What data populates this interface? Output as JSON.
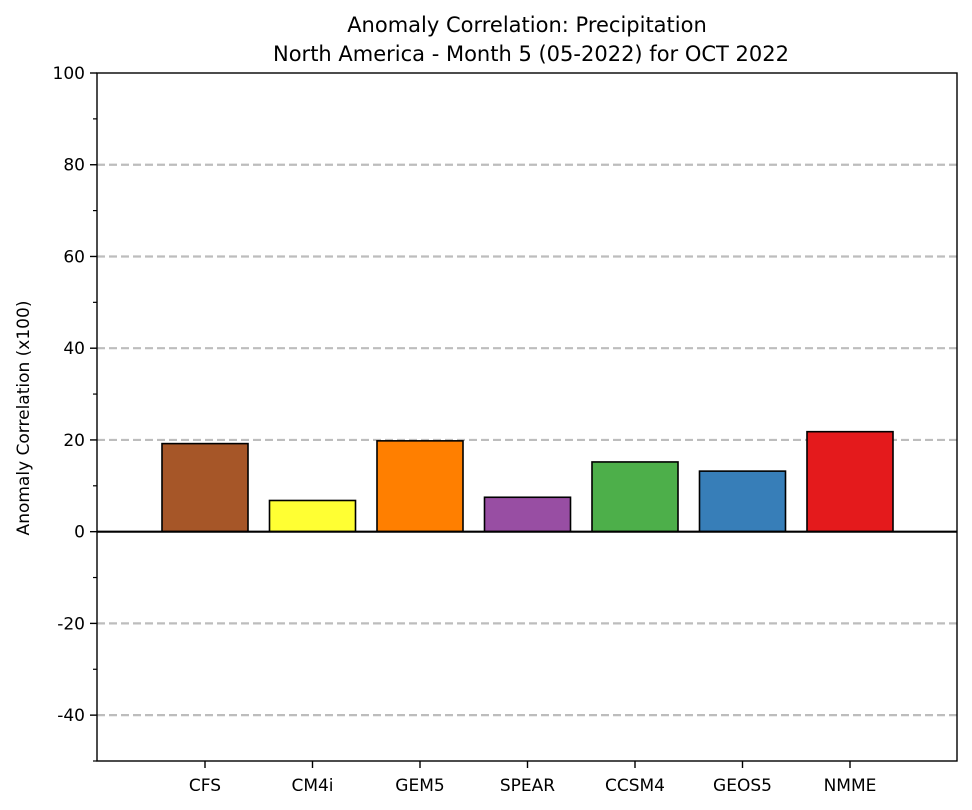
{
  "chart_data": {
    "type": "bar",
    "title": "Anomaly Correlation: Precipitation",
    "subtitle": "North America - Month 5 (05-2022) for OCT 2022",
    "xlabel": "",
    "ylabel": "Anomaly Correlation (x100)",
    "ylim": [
      -50,
      100
    ],
    "yticks": [
      -40,
      -20,
      0,
      20,
      40,
      60,
      80,
      100
    ],
    "ytick_labels": [
      "-40",
      "-20",
      "0",
      "20",
      "40",
      "60",
      "80",
      "100"
    ],
    "grid": "horizontal dashed at major ticks",
    "categories": [
      "CFS",
      "CM4i",
      "GEM5",
      "SPEAR",
      "CCSM4",
      "GEOS5",
      "NMME"
    ],
    "values": [
      19.2,
      6.8,
      19.8,
      7.5,
      15.2,
      13.2,
      21.8
    ],
    "colors": [
      "#a65628",
      "#ffff33",
      "#ff7f00",
      "#984ea3",
      "#4daf4a",
      "#377eb8",
      "#e41a1c"
    ]
  }
}
